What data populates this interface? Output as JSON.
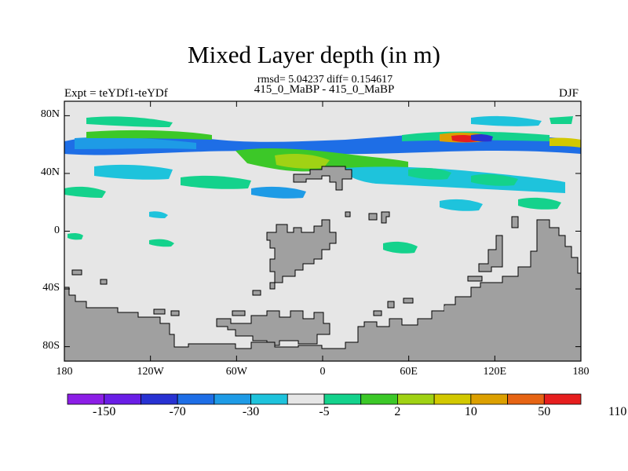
{
  "title": "Mixed Layer depth (in m)",
  "stats_line": "rmsd= 5.04237 diff= 0.154617",
  "expt_label": "Expt = teYDf1-teYDf",
  "case_label": "415_0_MaBP - 415_0_MaBP",
  "season_label": "DJF",
  "map": {
    "lon_range": [
      -180,
      180
    ],
    "lat_range": [
      -90,
      90
    ],
    "x_ticks": [
      {
        "value": -180,
        "label": "180"
      },
      {
        "value": -120,
        "label": "120W"
      },
      {
        "value": -60,
        "label": "60W"
      },
      {
        "value": 0,
        "label": "0"
      },
      {
        "value": 60,
        "label": "60E"
      },
      {
        "value": 120,
        "label": "120E"
      },
      {
        "value": 180,
        "label": "180"
      }
    ],
    "y_ticks": [
      {
        "value": 80,
        "label": "80N"
      },
      {
        "value": 40,
        "label": "40N"
      },
      {
        "value": 0,
        "label": "0"
      },
      {
        "value": -40,
        "label": "40S"
      },
      {
        "value": -80,
        "label": "80S"
      }
    ],
    "background_color": "#e6e6e6",
    "land_color": "#a0a0a0"
  },
  "colorbar": {
    "colors": [
      "#8c1ee6",
      "#6a1ee6",
      "#2832d2",
      "#1e6ee6",
      "#1e9be6",
      "#1ec3dc",
      "#e6e6e6",
      "#14d28c",
      "#3cc828",
      "#a0d214",
      "#d2c800",
      "#dca000",
      "#e66414",
      "#e61e1e"
    ],
    "labels": [
      {
        "boundary": 1,
        "text": "-150"
      },
      {
        "boundary": 3,
        "text": "-70"
      },
      {
        "boundary": 5,
        "text": "-30"
      },
      {
        "boundary": 7,
        "text": "-5"
      },
      {
        "boundary": 9,
        "text": "2"
      },
      {
        "boundary": 11,
        "text": "10"
      },
      {
        "boundary": 13,
        "text": "50"
      },
      {
        "boundary": 15,
        "text": "110"
      }
    ]
  }
}
